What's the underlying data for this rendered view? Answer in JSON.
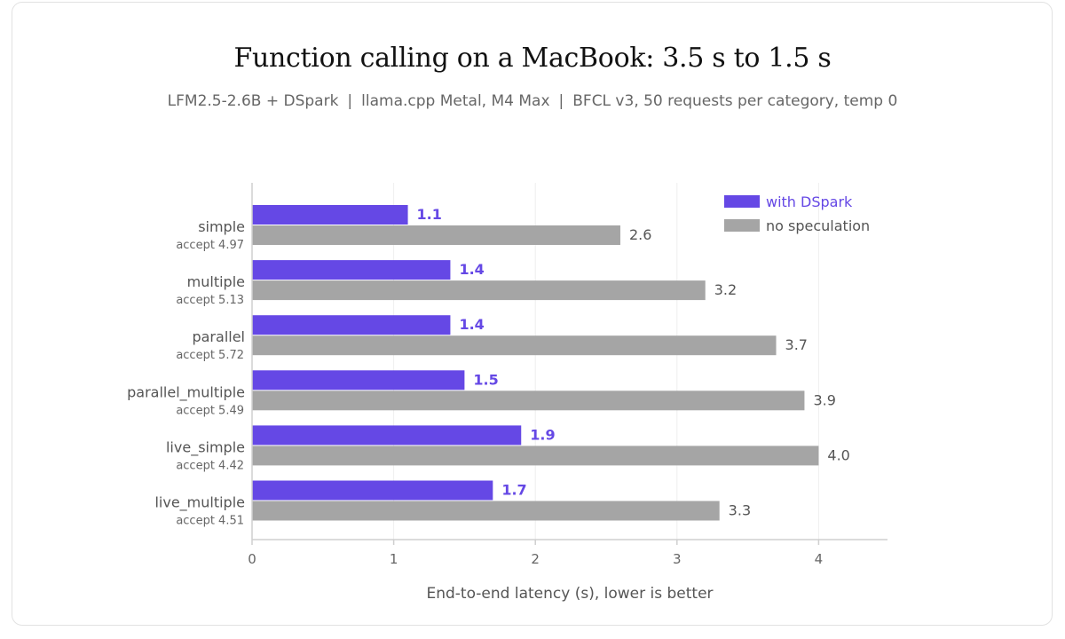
{
  "title": "Function calling on a MacBook: 3.5 s to 1.5 s",
  "subtitle_parts": [
    "LFM2.5-2.6B + DSpark",
    "llama.cpp Metal, M4 Max",
    "BFCL v3, 50 requests per category, temp 0"
  ],
  "subtitle_separator": "|",
  "colors": {
    "dspark": "#6548e5",
    "baseline": "#a5a5a5",
    "grid": "#eeeeee",
    "axis": "#cfcfcf"
  },
  "chart_data": {
    "type": "bar",
    "orientation": "horizontal",
    "categories": [
      "simple",
      "multiple",
      "parallel",
      "parallel_multiple",
      "live_simple",
      "live_multiple"
    ],
    "category_sublabels": [
      "accept 4.97",
      "accept 5.13",
      "accept 5.72",
      "accept 5.49",
      "accept 4.42",
      "accept 4.51"
    ],
    "series": [
      {
        "name": "with DSpark",
        "values": [
          1.1,
          1.4,
          1.4,
          1.5,
          1.9,
          1.7
        ],
        "color": "#6548e5"
      },
      {
        "name": "no speculation",
        "values": [
          2.6,
          3.2,
          3.7,
          3.9,
          4.0,
          3.3
        ],
        "color": "#a5a5a5"
      }
    ],
    "xlabel": "End-to-end latency (s), lower is better",
    "xlim": [
      0,
      4.5
    ],
    "xticks": [
      0,
      1,
      2,
      3,
      4
    ],
    "grid": true,
    "legend_position": "top-right"
  }
}
